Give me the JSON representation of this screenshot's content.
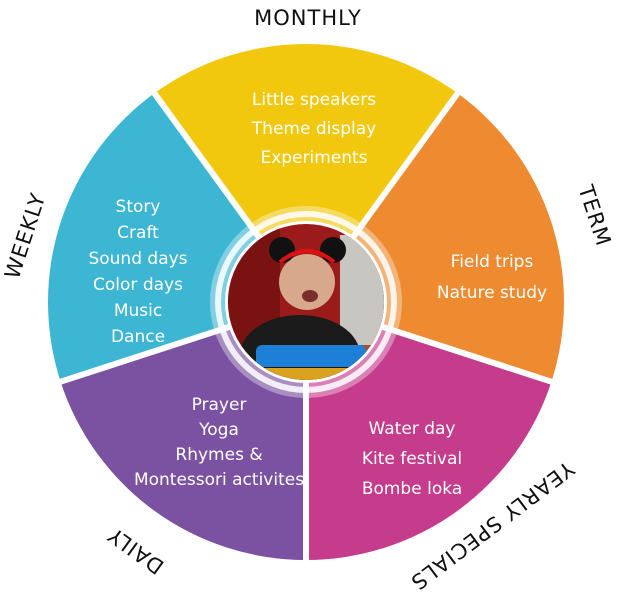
{
  "segments": [
    {
      "id": "monthly",
      "label": "MONTHLY",
      "color": "#F2C80F",
      "items": [
        "Little speakers",
        "Theme display",
        "Experiments"
      ]
    },
    {
      "id": "term",
      "label": "TERM",
      "color": "#EE8A2F",
      "items": [
        "Field trips",
        "Nature study"
      ]
    },
    {
      "id": "yearly-specials",
      "label": "YEARLY SPECIALS",
      "color": "#C63C8D",
      "items": [
        "Water day",
        "Kite festival",
        "Bombe loka"
      ]
    },
    {
      "id": "daily",
      "label": "DAILY",
      "color": "#7B52A1",
      "items": [
        "Prayer",
        "Yoga",
        "Rhymes &",
        "Montessori activites"
      ]
    },
    {
      "id": "weekly",
      "label": "WEEKLY",
      "color": "#3DB6D3",
      "items": [
        "Story",
        "Craft",
        "Sound days",
        "Color days",
        "Music",
        "Dance"
      ]
    }
  ],
  "center_photo": {
    "description": "child-with-mouse-ears-photo"
  }
}
